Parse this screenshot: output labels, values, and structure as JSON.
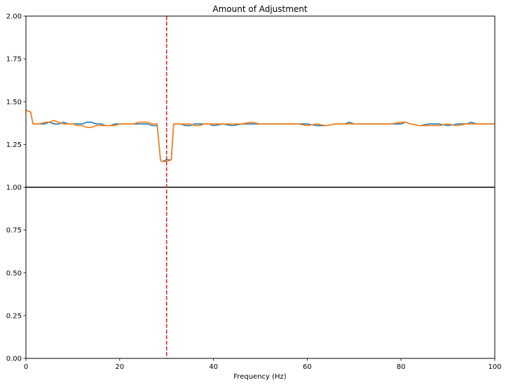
{
  "chart_data": {
    "type": "line",
    "title": "Amount of Adjustment",
    "xlabel": "Frequency (Hz)",
    "ylabel": "",
    "xlim": [
      0,
      100
    ],
    "ylim": [
      0,
      2
    ],
    "xticks": [
      0,
      20,
      40,
      60,
      80,
      100
    ],
    "yticks": [
      0.0,
      0.25,
      0.5,
      0.75,
      1.0,
      1.25,
      1.5,
      1.75,
      2.0
    ],
    "xtick_labels": [
      "0",
      "20",
      "40",
      "60",
      "80",
      "100"
    ],
    "ytick_labels": [
      "0.00",
      "0.25",
      "0.50",
      "0.75",
      "1.00",
      "1.25",
      "1.50",
      "1.75",
      "2.00"
    ],
    "grid": false,
    "colors": {
      "series1": "#1f77b4",
      "series2": "#ff7f0e",
      "hline": "#000000",
      "vline": "#d62728"
    },
    "hline": {
      "y": 1.0
    },
    "vline": {
      "x": 30
    },
    "series": [
      {
        "x": [
          0,
          1,
          1.5,
          2,
          3,
          4,
          5,
          6,
          7,
          8,
          9,
          10,
          11,
          12,
          13,
          14,
          15,
          16,
          17,
          18,
          19,
          20,
          21,
          22,
          23,
          24,
          25,
          26,
          27,
          28,
          28.7,
          29,
          30,
          31,
          31.5,
          32,
          33,
          34,
          35,
          36,
          37,
          38,
          39,
          40,
          42,
          44,
          46,
          48,
          50,
          52,
          54,
          56,
          58,
          60,
          62,
          64,
          66,
          68,
          69,
          70,
          72,
          74,
          76,
          78,
          80,
          81,
          82,
          84,
          86,
          88,
          90,
          92,
          94,
          95,
          96,
          98,
          100
        ],
        "values": [
          1.45,
          1.44,
          1.37,
          1.37,
          1.37,
          1.37,
          1.38,
          1.37,
          1.37,
          1.38,
          1.37,
          1.37,
          1.37,
          1.37,
          1.38,
          1.38,
          1.37,
          1.37,
          1.36,
          1.36,
          1.37,
          1.37,
          1.37,
          1.37,
          1.37,
          1.37,
          1.37,
          1.37,
          1.36,
          1.36,
          1.16,
          1.15,
          1.16,
          1.16,
          1.37,
          1.37,
          1.37,
          1.36,
          1.36,
          1.37,
          1.37,
          1.37,
          1.37,
          1.36,
          1.37,
          1.36,
          1.37,
          1.37,
          1.37,
          1.37,
          1.37,
          1.37,
          1.37,
          1.37,
          1.36,
          1.36,
          1.37,
          1.37,
          1.38,
          1.37,
          1.37,
          1.37,
          1.37,
          1.37,
          1.37,
          1.38,
          1.37,
          1.36,
          1.37,
          1.37,
          1.36,
          1.37,
          1.37,
          1.38,
          1.37,
          1.37,
          1.37
        ]
      },
      {
        "x": [
          0,
          1,
          1.5,
          2,
          3,
          4,
          5,
          6,
          7,
          8,
          9,
          10,
          11,
          12,
          13,
          14,
          15,
          16,
          17,
          18,
          19,
          20,
          21,
          22,
          23,
          24,
          25,
          26,
          27,
          28,
          28.7,
          29,
          30,
          31,
          31.5,
          32,
          33,
          34,
          35,
          36,
          37,
          38,
          39,
          40,
          42,
          44,
          46,
          48,
          50,
          52,
          54,
          56,
          58,
          60,
          62,
          64,
          66,
          68,
          69,
          70,
          72,
          74,
          76,
          78,
          80,
          81,
          82,
          84,
          86,
          88,
          90,
          92,
          94,
          95,
          96,
          98,
          100
        ],
        "values": [
          1.45,
          1.44,
          1.37,
          1.37,
          1.37,
          1.38,
          1.38,
          1.39,
          1.38,
          1.37,
          1.37,
          1.37,
          1.36,
          1.36,
          1.35,
          1.35,
          1.36,
          1.36,
          1.36,
          1.36,
          1.36,
          1.37,
          1.37,
          1.37,
          1.37,
          1.38,
          1.38,
          1.38,
          1.37,
          1.37,
          1.16,
          1.15,
          1.15,
          1.16,
          1.37,
          1.37,
          1.37,
          1.37,
          1.37,
          1.36,
          1.36,
          1.37,
          1.37,
          1.37,
          1.37,
          1.37,
          1.37,
          1.38,
          1.37,
          1.37,
          1.37,
          1.37,
          1.37,
          1.36,
          1.37,
          1.36,
          1.37,
          1.37,
          1.37,
          1.37,
          1.37,
          1.37,
          1.37,
          1.37,
          1.38,
          1.38,
          1.37,
          1.36,
          1.36,
          1.36,
          1.37,
          1.36,
          1.37,
          1.37,
          1.37,
          1.37,
          1.37
        ]
      }
    ]
  }
}
